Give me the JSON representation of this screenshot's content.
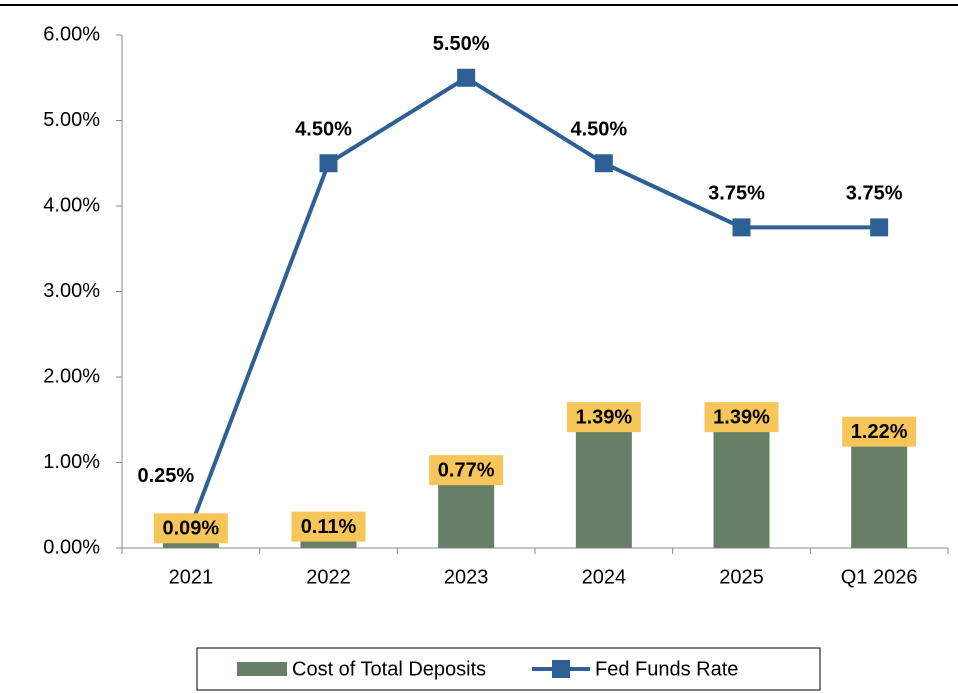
{
  "chart_data": {
    "type": "combo",
    "categories": [
      "2021",
      "2022",
      "2023",
      "2024",
      "2025",
      "Q1 2026"
    ],
    "series": [
      {
        "name": "Cost of Total Deposits",
        "type": "bar",
        "color": "#667f66",
        "label_color": "#f7c65a",
        "values": [
          0.09,
          0.11,
          0.77,
          1.39,
          1.39,
          1.22
        ],
        "value_labels": [
          "0.09%",
          "0.11%",
          "0.77%",
          "1.39%",
          "1.39%",
          "1.22%"
        ]
      },
      {
        "name": "Fed Funds Rate",
        "type": "line",
        "color": "#2e6095",
        "values": [
          0.25,
          4.5,
          5.5,
          4.5,
          3.75,
          3.75
        ],
        "value_labels": [
          "0.25%",
          "4.50%",
          "5.50%",
          "4.50%",
          "3.75%",
          "3.75%"
        ]
      }
    ],
    "ylim": [
      0,
      6
    ],
    "yticks": [
      {
        "value": 0,
        "label": "0.00%"
      },
      {
        "value": 1,
        "label": "1.00%"
      },
      {
        "value": 2,
        "label": "2.00%"
      },
      {
        "value": 3,
        "label": "3.00%"
      },
      {
        "value": 4,
        "label": "4.00%"
      },
      {
        "value": 5,
        "label": "5.00%"
      },
      {
        "value": 6,
        "label": "6.00%"
      }
    ],
    "legend": "bottom"
  }
}
